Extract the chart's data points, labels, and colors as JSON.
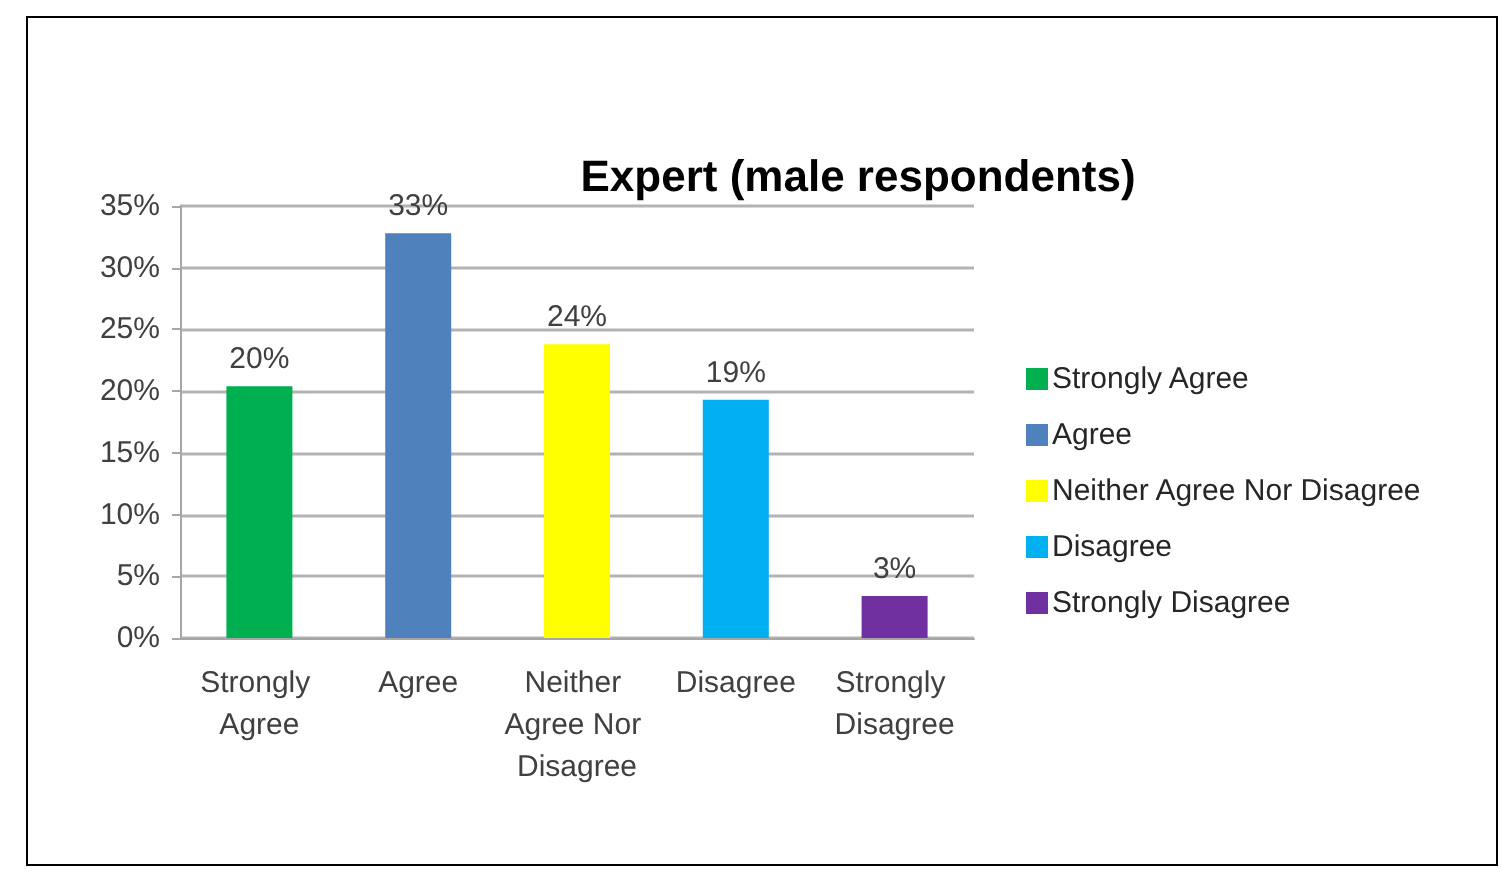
{
  "chart_data": {
    "type": "bar",
    "title": "Expert (male respondents)",
    "categories": [
      "Strongly Agree",
      "Agree",
      "Neither Agree Nor Disagree",
      "Disagree",
      "Strongly Disagree"
    ],
    "series": [
      {
        "name": "Strongly Agree",
        "color": "#00b050",
        "values": [
          20.4,
          null,
          null,
          null,
          null
        ],
        "value_labels": [
          "20%",
          null,
          null,
          null,
          null
        ]
      },
      {
        "name": "Agree",
        "color": "#4f81bd",
        "values": [
          null,
          32.8,
          null,
          null,
          null
        ],
        "value_labels": [
          null,
          "33%",
          null,
          null,
          null
        ]
      },
      {
        "name": "Neither Agree Nor Disagree",
        "color": "#ffff00",
        "values": [
          null,
          null,
          23.8,
          null,
          null
        ],
        "value_labels": [
          null,
          null,
          "24%",
          null,
          null
        ]
      },
      {
        "name": "Disagree",
        "color": "#00b0f0",
        "values": [
          null,
          null,
          null,
          19.3,
          null
        ],
        "value_labels": [
          null,
          null,
          null,
          "19%",
          null
        ]
      },
      {
        "name": "Strongly Disagree",
        "color": "#7030a0",
        "values": [
          null,
          null,
          null,
          null,
          3.4
        ],
        "value_labels": [
          null,
          null,
          null,
          null,
          "3%"
        ]
      }
    ],
    "stacked": true,
    "ylim": [
      0,
      35
    ],
    "yticks": [
      {
        "value": 0,
        "label": "0%"
      },
      {
        "value": 5,
        "label": "5%"
      },
      {
        "value": 10,
        "label": "10%"
      },
      {
        "value": 15,
        "label": "15%"
      },
      {
        "value": 20,
        "label": "20%"
      },
      {
        "value": 25,
        "label": "25%"
      },
      {
        "value": 30,
        "label": "30%"
      },
      {
        "value": 35,
        "label": "35%"
      }
    ],
    "grid": "y",
    "legend": "right"
  }
}
